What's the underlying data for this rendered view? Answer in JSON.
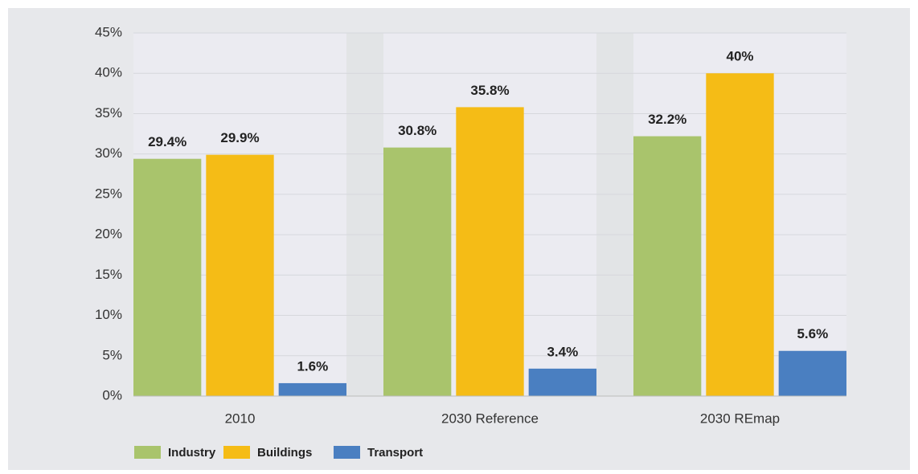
{
  "chart_data": {
    "type": "bar",
    "categories": [
      "2010",
      "2030 Reference",
      "2030 REmap"
    ],
    "series": [
      {
        "name": "Industry",
        "color": "#a9c46c",
        "values": [
          29.4,
          30.8,
          32.2
        ],
        "value_labels": [
          "29.4%",
          "30.8%",
          "32.2%"
        ]
      },
      {
        "name": "Buildings",
        "color": "#f5bc16",
        "values": [
          29.9,
          35.8,
          40
        ],
        "value_labels": [
          "29.9%",
          "35.8%",
          "40%"
        ]
      },
      {
        "name": "Transport",
        "color": "#4a7fc1",
        "values": [
          1.6,
          3.4,
          5.6
        ],
        "value_labels": [
          "1.6%",
          "3.4%",
          "5.6%"
        ]
      }
    ],
    "ylim": [
      0,
      45
    ],
    "yticks": [
      {
        "value": 0,
        "label": "0%"
      },
      {
        "value": 5,
        "label": "5%"
      },
      {
        "value": 10,
        "label": "10%"
      },
      {
        "value": 15,
        "label": "15%"
      },
      {
        "value": 20,
        "label": "20%"
      },
      {
        "value": 25,
        "label": "25%"
      },
      {
        "value": 30,
        "label": "30%"
      },
      {
        "value": 35,
        "label": "35%"
      },
      {
        "value": 40,
        "label": "40%"
      },
      {
        "value": 45,
        "label": "45%"
      }
    ],
    "grid": true,
    "legend": "bottom-left"
  }
}
